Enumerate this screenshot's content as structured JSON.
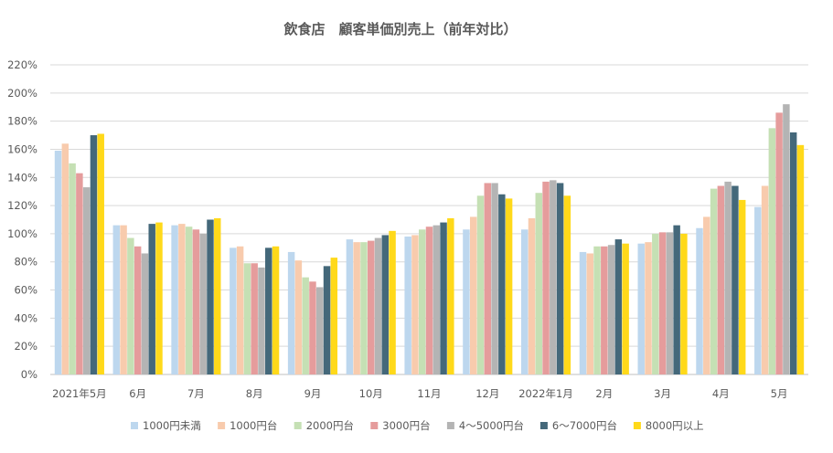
{
  "chart_data": {
    "type": "bar",
    "title": "飲食店　顧客単価別売上（前年対比）",
    "xlabel": "",
    "ylabel": "",
    "ylim": [
      0,
      220
    ],
    "y_ticks": [
      "0%",
      "20%",
      "40%",
      "60%",
      "80%",
      "100%",
      "120%",
      "140%",
      "160%",
      "180%",
      "200%",
      "220%"
    ],
    "y_tick_values": [
      0,
      20,
      40,
      60,
      80,
      100,
      120,
      140,
      160,
      180,
      200,
      220
    ],
    "grid": true,
    "legend_position": "bottom",
    "categories": [
      "2021年5月",
      "6月",
      "7月",
      "8月",
      "9月",
      "10月",
      "11月",
      "12月",
      "2022年1月",
      "2月",
      "3月",
      "4月",
      "5月"
    ],
    "series": [
      {
        "name": "1000円未満",
        "color": "#bdd7ee",
        "values": [
          159,
          106,
          106,
          90,
          87,
          96,
          98,
          103,
          103,
          87,
          93,
          104,
          119
        ]
      },
      {
        "name": "1000円台",
        "color": "#f8cbad",
        "values": [
          164,
          106,
          107,
          91,
          81,
          94,
          99,
          112,
          111,
          86,
          94,
          112,
          134
        ]
      },
      {
        "name": "2000円台",
        "color": "#c5e0b4",
        "values": [
          150,
          97,
          105,
          79,
          69,
          94,
          103,
          127,
          129,
          91,
          100,
          132,
          175
        ]
      },
      {
        "name": "3000円台",
        "color": "#e59c9c",
        "values": [
          143,
          91,
          103,
          79,
          66,
          95,
          105,
          136,
          137,
          91,
          101,
          134,
          186
        ]
      },
      {
        "name": "4～5000円台",
        "color": "#b4b4b4",
        "values": [
          133,
          86,
          100,
          76,
          62,
          97,
          106,
          136,
          138,
          92,
          101,
          137,
          192
        ]
      },
      {
        "name": "6～7000円台",
        "color": "#44687a",
        "values": [
          170,
          107,
          110,
          90,
          77,
          99,
          108,
          128,
          136,
          96,
          106,
          134,
          172
        ]
      },
      {
        "name": "8000円以上",
        "color": "#ffd91a",
        "values": [
          171,
          108,
          111,
          91,
          83,
          102,
          111,
          125,
          127,
          93,
          100,
          124,
          163
        ]
      }
    ]
  }
}
